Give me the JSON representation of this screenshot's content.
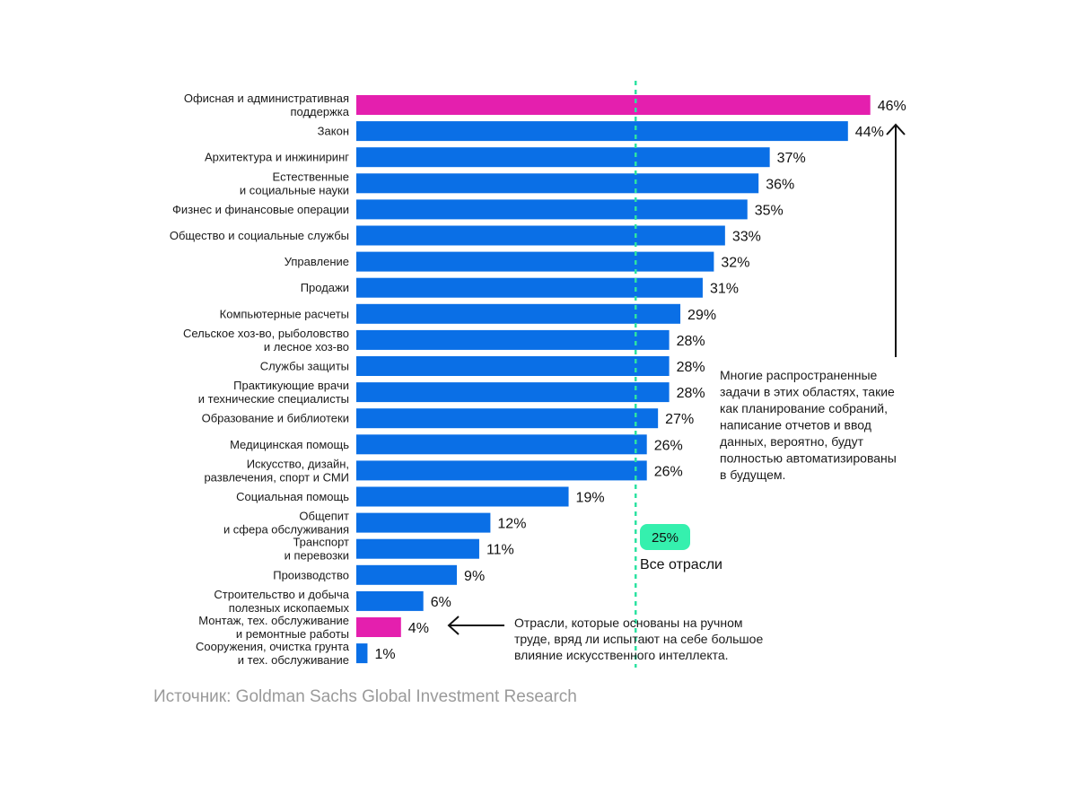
{
  "colors": {
    "bar": "#0a6fe6",
    "highlight": "#e41fae",
    "avg_line": "#2de3a2",
    "badge": "#35f0ae",
    "text": "#111111",
    "source": "#9a9a9a"
  },
  "chart_data": {
    "type": "bar",
    "orientation": "horizontal",
    "unit": "%",
    "categories": [
      [
        "Офисная и административная",
        "поддержка"
      ],
      [
        "Закон"
      ],
      [
        "Архитектура и инжиниринг"
      ],
      [
        "Естественные",
        "и социальные науки"
      ],
      [
        "Физнес и финансовые операции"
      ],
      [
        "Общество и социальные службы"
      ],
      [
        "Управление"
      ],
      [
        "Продажи"
      ],
      [
        "Компьютерные расчеты"
      ],
      [
        "Сельское хоз-во, рыболовство",
        "и лесное хоз-во"
      ],
      [
        "Службы защиты"
      ],
      [
        "Практикующие врачи",
        "и технические специалисты"
      ],
      [
        "Образование и библиотеки"
      ],
      [
        "Медицинская помощь"
      ],
      [
        "Искусство, дизайн,",
        "развлечения, спорт и СМИ"
      ],
      [
        "Социальная помощь"
      ],
      [
        "Общепит",
        "и сфера обслуживания"
      ],
      [
        "Транспорт",
        "и перевозки"
      ],
      [
        "Производство"
      ],
      [
        "Строительство и добыча",
        "полезных ископаемых"
      ],
      [
        "Монтаж, тех. обслуживание",
        "и ремонтные работы"
      ],
      [
        "Сооружения, очистка грунта",
        "и тех. обслуживание"
      ]
    ],
    "values": [
      46,
      44,
      37,
      36,
      35,
      33,
      32,
      31,
      29,
      28,
      28,
      28,
      27,
      26,
      26,
      19,
      12,
      11,
      9,
      6,
      4,
      1
    ],
    "value_labels": [
      "46%",
      "44%",
      "37%",
      "36%",
      "35%",
      "33%",
      "32%",
      "31%",
      "29%",
      "28%",
      "28%",
      "28%",
      "27%",
      "26%",
      "26%",
      "19%",
      "12%",
      "11%",
      "9%",
      "6%",
      "4%",
      "1%"
    ],
    "highlighted_indices": [
      0,
      20
    ],
    "average": {
      "value": 25,
      "badge": "25%",
      "label": "Все отрасли"
    },
    "xlim": [
      0,
      46
    ],
    "grid": false,
    "legend": "none",
    "annotations": {
      "top": [
        "Многие распространенные",
        "задачи в этих областях, такие",
        "как планирование собраний,",
        "написание отчетов и ввод",
        "данных, вероятно, будут",
        "полностью автоматизированы",
        "в будущем."
      ],
      "bottom": [
        "Отрасли, которые основаны на ручном",
        "труде, вряд ли испытают на себе большое",
        "влияние искусственного интеллекта."
      ]
    }
  },
  "source": "Источник: Goldman Sachs Global Investment Research"
}
